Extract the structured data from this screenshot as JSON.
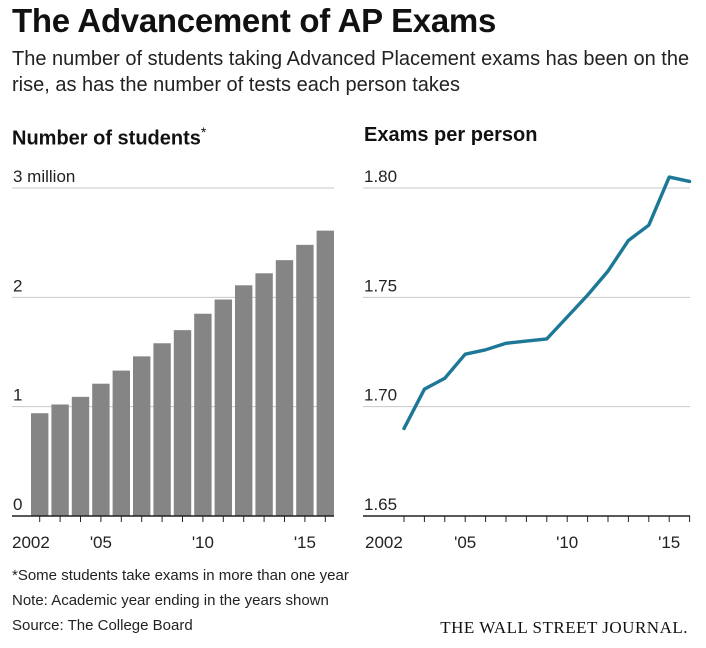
{
  "header": {
    "title": "The Advancement of AP Exams",
    "subtitle": "The number of students taking Advanced Placement exams has been on the rise, as has the number of tests each person takes"
  },
  "chart_data": [
    {
      "type": "bar",
      "title": "Number of students",
      "title_mark": "*",
      "categories": [
        2002,
        2003,
        2004,
        2005,
        2006,
        2007,
        2008,
        2009,
        2010,
        2011,
        2012,
        2013,
        2014,
        2015,
        2016
      ],
      "values": [
        0.94,
        1.02,
        1.09,
        1.21,
        1.33,
        1.46,
        1.58,
        1.7,
        1.85,
        1.98,
        2.11,
        2.22,
        2.34,
        2.48,
        2.61
      ],
      "ylim": [
        0,
        3
      ],
      "y_ticks": [
        0,
        1,
        2,
        3
      ],
      "y_tick_labels": [
        "0",
        "1",
        "2",
        "3 million"
      ],
      "x_ticks": [
        2002,
        2005,
        2010,
        2015
      ],
      "x_tick_labels": [
        "2002",
        "'05",
        "'10",
        "'15"
      ],
      "grid": true,
      "bar_color": "#858585"
    },
    {
      "type": "line",
      "title": "Exams per person",
      "x": [
        2002,
        2003,
        2004,
        2005,
        2006,
        2007,
        2008,
        2009,
        2010,
        2011,
        2012,
        2013,
        2014,
        2015,
        2016
      ],
      "y": [
        1.69,
        1.708,
        1.713,
        1.724,
        1.726,
        1.729,
        1.73,
        1.731,
        1.741,
        1.751,
        1.762,
        1.776,
        1.783,
        1.805,
        1.803
      ],
      "ylim": [
        1.65,
        1.8
      ],
      "y_ticks": [
        1.65,
        1.7,
        1.75,
        1.8
      ],
      "y_tick_labels": [
        "1.65",
        "1.70",
        "1.75",
        "1.80"
      ],
      "x_ticks": [
        2002,
        2005,
        2010,
        2015
      ],
      "x_tick_labels": [
        "2002",
        "'05",
        "'10",
        "'15"
      ],
      "grid": true,
      "line_color": "#1c7896"
    }
  ],
  "footer": {
    "note1": "*Some students take exams in more than one year",
    "note2": "Note: Academic year ending in the years shown",
    "source": "Source: The College Board",
    "brand": "THE WALL STREET JOURNAL."
  }
}
